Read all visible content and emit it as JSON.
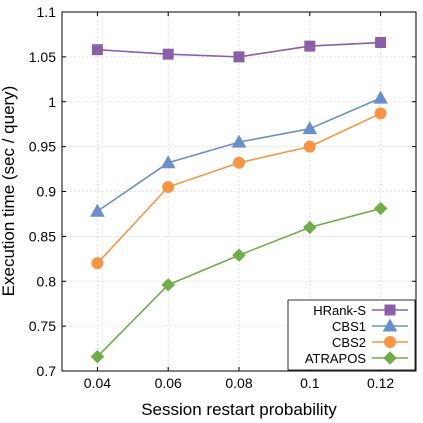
{
  "chart_data": {
    "type": "line",
    "xlabel": "Session restart probability",
    "ylabel": "Execution time (sec / query)",
    "xlim": [
      0.03,
      0.13
    ],
    "ylim": [
      0.7,
      1.1
    ],
    "x": [
      0.04,
      0.06,
      0.08,
      0.1,
      0.12
    ],
    "x_tick_labels": [
      "0.04",
      "0.06",
      "0.08",
      "0.1",
      "0.12"
    ],
    "y_ticks": [
      0.7,
      0.75,
      0.8,
      0.85,
      0.9,
      0.95,
      1.0,
      1.05,
      1.1
    ],
    "y_tick_labels": [
      "0.7",
      "0.75",
      "0.8",
      "0.85",
      "0.9",
      "0.95",
      "1",
      "1.05",
      "1.1"
    ],
    "grid": true,
    "legend_position": "bottom-right",
    "series": [
      {
        "name": "HRank-S",
        "values": [
          1.058,
          1.053,
          1.05,
          1.062,
          1.066
        ],
        "color": "#8b5fa8",
        "marker": "square"
      },
      {
        "name": "CBS1",
        "values": [
          0.878,
          0.932,
          0.955,
          0.97,
          1.004
        ],
        "color": "#6b8fc9",
        "marker": "triangle"
      },
      {
        "name": "CBS2",
        "values": [
          0.82,
          0.905,
          0.932,
          0.95,
          0.987
        ],
        "color": "#f79546",
        "marker": "circle"
      },
      {
        "name": "ATRAPOS",
        "values": [
          0.716,
          0.796,
          0.829,
          0.86,
          0.881
        ],
        "color": "#72ab4a",
        "marker": "diamond"
      }
    ]
  }
}
